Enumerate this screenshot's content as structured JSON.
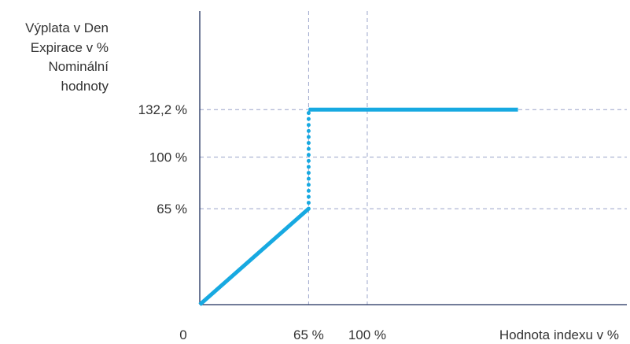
{
  "chart_data": {
    "type": "line",
    "ylabel_lines": [
      "Výplata v Den",
      "Expirace v %",
      "Nominální",
      "hodnoty"
    ],
    "xlabel": "Hodnota indexu v %",
    "origin_label": "0",
    "x_ticks": [
      {
        "value": 65,
        "label": "65 %"
      },
      {
        "value": 100,
        "label": "100 %"
      }
    ],
    "y_ticks": [
      {
        "value": 65,
        "label": "65 %"
      },
      {
        "value": 100,
        "label": "100 %"
      },
      {
        "value": 132.2,
        "label": "132,2 %"
      }
    ],
    "xlim": [
      0,
      255
    ],
    "ylim": [
      0,
      199
    ],
    "grid": true,
    "series": [
      {
        "segment": "linear",
        "style": "solid",
        "points": [
          [
            0,
            0
          ],
          [
            65,
            65
          ]
        ]
      },
      {
        "segment": "jump",
        "style": "dotted",
        "points": [
          [
            65,
            65
          ],
          [
            65,
            132.2
          ]
        ]
      },
      {
        "segment": "cap",
        "style": "solid",
        "points": [
          [
            65,
            132.2
          ],
          [
            190,
            132.2
          ]
        ]
      }
    ],
    "colors": {
      "line": "#17a9e1",
      "grid": "#9aa3c9",
      "axis": "#1f2f5c"
    }
  }
}
